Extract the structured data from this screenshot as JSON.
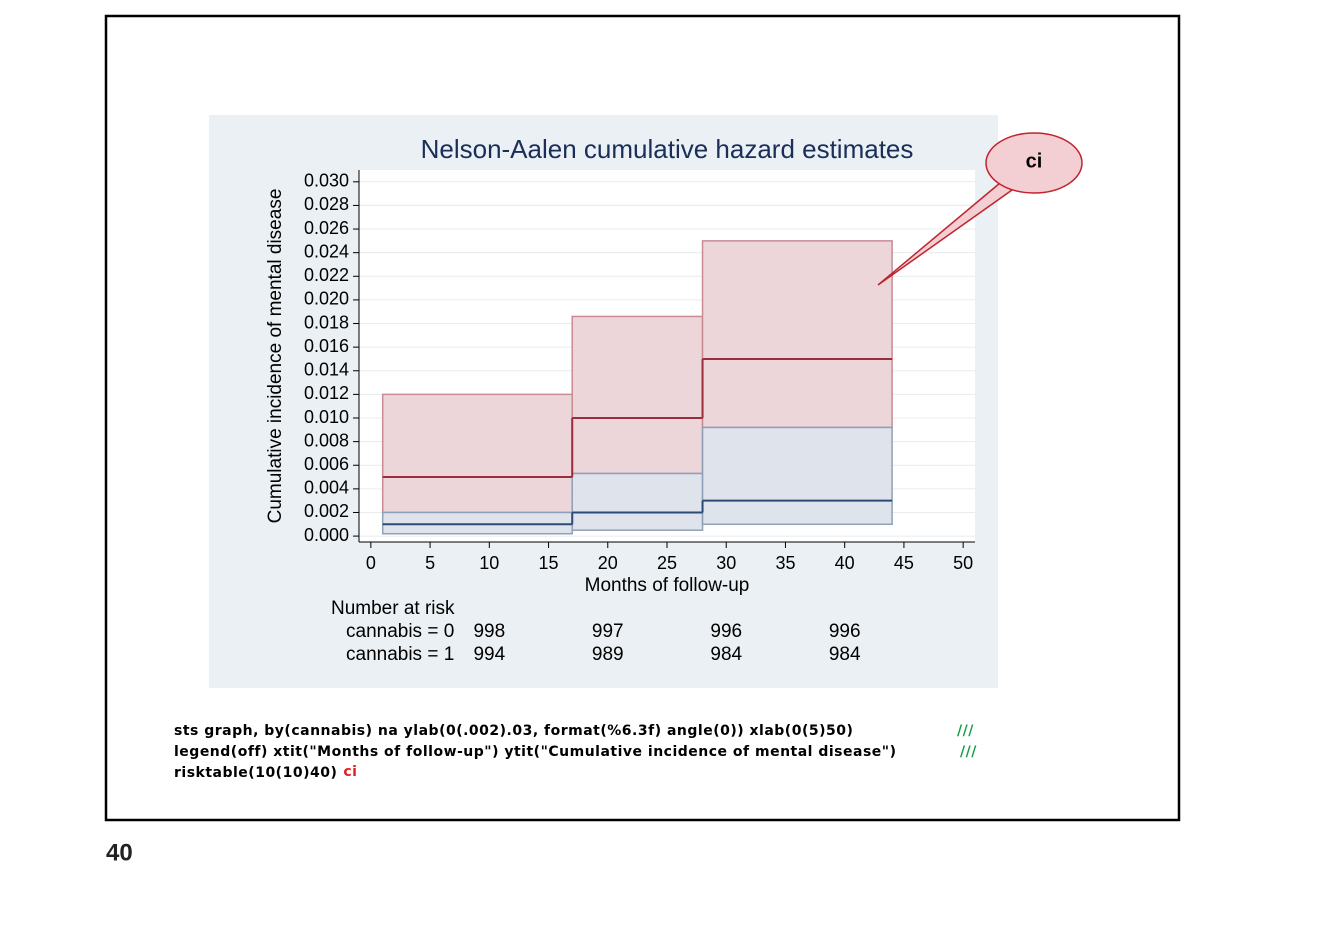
{
  "chart_data": {
    "type": "step_ci",
    "title": "Nelson-Aalen cumulative hazard estimates",
    "x_label": "Months of follow-up",
    "y_label": "Cumulative incidence of mental disease",
    "grid": true,
    "xlim": [
      -1,
      51
    ],
    "xticks": [
      0,
      5,
      10,
      15,
      20,
      25,
      30,
      35,
      40,
      45,
      50
    ],
    "ylim": [
      -0.0005,
      0.031
    ],
    "yticks": [
      {
        "value": 0,
        "label": "0.000"
      },
      {
        "value": 0.002,
        "label": "0.002"
      },
      {
        "value": 0.004,
        "label": "0.004"
      },
      {
        "value": 0.006,
        "label": "0.006"
      },
      {
        "value": 0.008,
        "label": "0.008"
      },
      {
        "value": 0.01,
        "label": "0.010"
      },
      {
        "value": 0.012,
        "label": "0.012"
      },
      {
        "value": 0.014,
        "label": "0.014"
      },
      {
        "value": 0.016,
        "label": "0.016"
      },
      {
        "value": 0.018,
        "label": "0.018"
      },
      {
        "value": 0.02,
        "label": "0.020"
      },
      {
        "value": 0.022,
        "label": "0.022"
      },
      {
        "value": 0.024,
        "label": "0.024"
      },
      {
        "value": 0.026,
        "label": "0.026"
      },
      {
        "value": 0.028,
        "label": "0.028"
      },
      {
        "value": 0.03,
        "label": "0.030"
      }
    ],
    "x_start": [
      1,
      17,
      28
    ],
    "x_end": [
      17,
      28,
      44
    ],
    "series": [
      {
        "color": "#9b2d3a",
        "band_color": "#ecd6d9",
        "band_edge": "#c98a93",
        "values": [
          0.005,
          0.01,
          0.015
        ],
        "lower": [
          0.002,
          0.0053,
          0.0092
        ],
        "upper": [
          0.012,
          0.0186,
          0.025
        ]
      },
      {
        "color": "#2a4a78",
        "band_color": "#d9dfe9",
        "band_edge": "#8fa0b8",
        "values": [
          0.001,
          0.002,
          0.003
        ],
        "lower": [
          0.0002,
          0.0005,
          0.001
        ],
        "upper": [
          0.002,
          0.0053,
          0.0092
        ]
      }
    ],
    "risk_table": {
      "title": "Number at risk",
      "x": [
        10,
        20,
        30,
        40
      ],
      "rows": [
        {
          "label": "cannabis = 0",
          "values": [
            "998",
            "997",
            "996",
            "996"
          ]
        },
        {
          "label": "cannabis = 1",
          "values": [
            "994",
            "989",
            "984",
            "984"
          ]
        }
      ]
    }
  },
  "callout": "ci",
  "code": {
    "lines": [
      "sts graph, by(cannabis) na ylab(0(.002).03, format(%6.3f) angle(0)) xlab(0(5)50)",
      "legend(off) xtit(\"Months of follow-up\") ytit(\"Cumulative incidence of mental disease\")",
      "risktable(10(10)40)"
    ],
    "continuation": "///",
    "highlight": "ci"
  },
  "page_number": "40"
}
